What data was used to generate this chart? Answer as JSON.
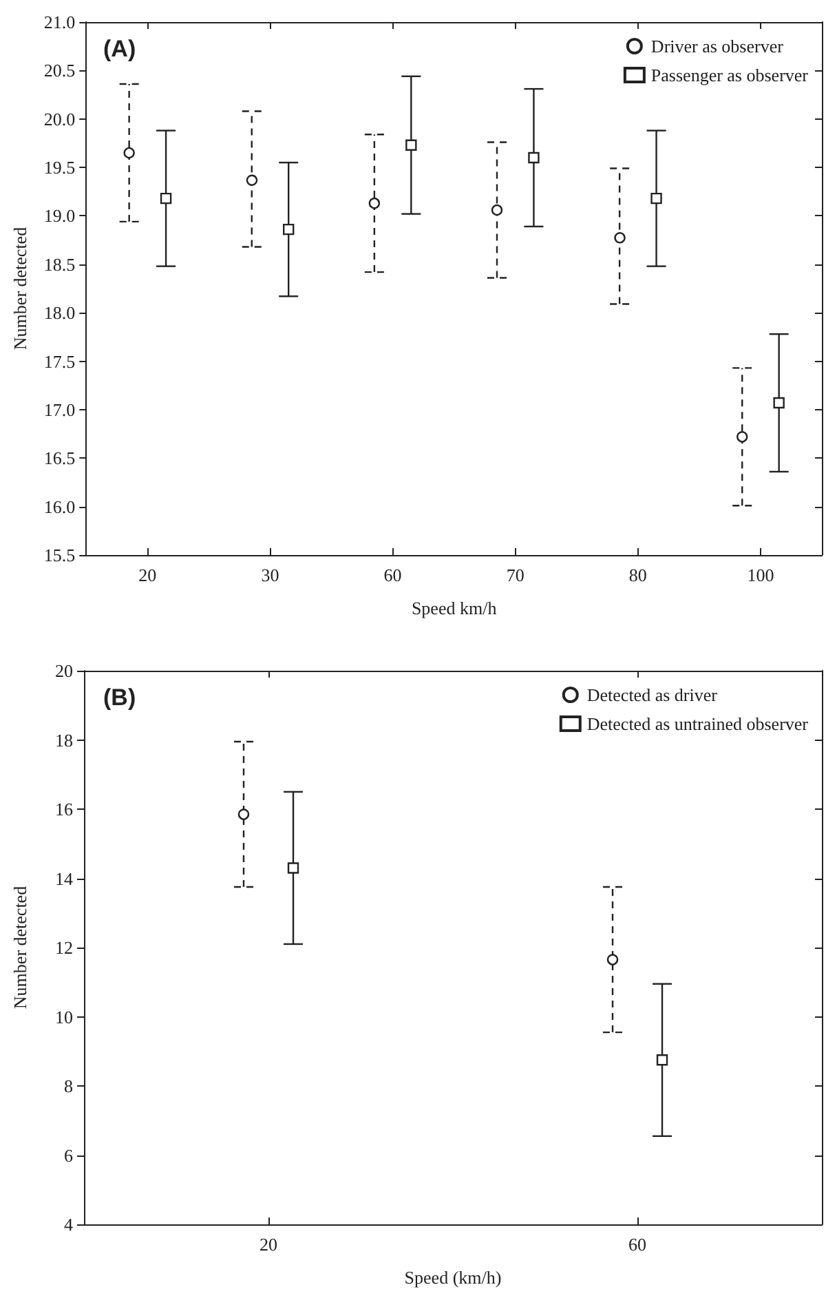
{
  "chart_data": [
    {
      "type": "scatter",
      "title": "(A)",
      "xlabel": "Speed km/h",
      "ylabel": "Number detected",
      "categories": [
        "20",
        "30",
        "60",
        "70",
        "80",
        "100"
      ],
      "series": [
        {
          "name": "Driver as observer",
          "color": "#222222",
          "marker": "circle",
          "line_style": "dashed",
          "values": [
            19.65,
            19.38,
            19.13,
            19.06,
            18.79,
            16.72
          ],
          "errors": [
            0.71,
            0.7,
            0.71,
            0.7,
            0.7,
            0.71
          ]
        },
        {
          "name": "Passenger as observer",
          "color": "#222222",
          "marker": "square",
          "line_style": "solid",
          "values": [
            19.18,
            18.86,
            19.73,
            19.6,
            19.18,
            17.07
          ],
          "errors": [
            0.7,
            0.69,
            0.71,
            0.71,
            0.7,
            0.71
          ]
        }
      ],
      "ylim": [
        15.5,
        21
      ],
      "yticks": [
        {
          "value": 15.5,
          "label": "15.5"
        },
        {
          "value": 16,
          "label": "16.0"
        },
        {
          "value": 16.5,
          "label": "16.5"
        },
        {
          "value": 17,
          "label": "17.0"
        },
        {
          "value": 17.5,
          "label": "17.5"
        },
        {
          "value": 18,
          "label": "18.0"
        },
        {
          "value": 18.5,
          "label": "18.5"
        },
        {
          "value": 19,
          "label": "19.0"
        },
        {
          "value": 19.5,
          "label": "19.5"
        },
        {
          "value": 20,
          "label": "20.0"
        },
        {
          "value": 20.5,
          "label": "20.5"
        },
        {
          "value": 21,
          "label": "21.0"
        }
      ],
      "grid": false,
      "legend": "top right"
    },
    {
      "type": "scatter",
      "title": "(B)",
      "xlabel": "Speed (km/h)",
      "ylabel": "Number detected",
      "categories": [
        "20",
        "60"
      ],
      "series": [
        {
          "name": "Detected as driver",
          "color": "#222222",
          "marker": "circle",
          "line_style": "dashed",
          "values": [
            15.85,
            11.65
          ],
          "errors": [
            2.1,
            2.1
          ]
        },
        {
          "name": "Detected as untrained observer",
          "color": "#222222",
          "marker": "square",
          "line_style": "solid",
          "values": [
            14.3,
            8.75
          ],
          "errors": [
            2.2,
            2.2
          ]
        }
      ],
      "ylim": [
        4,
        20
      ],
      "yticks": [
        4,
        6,
        8,
        10,
        12,
        14,
        16,
        18,
        20
      ],
      "grid": false,
      "legend": "top right"
    }
  ]
}
